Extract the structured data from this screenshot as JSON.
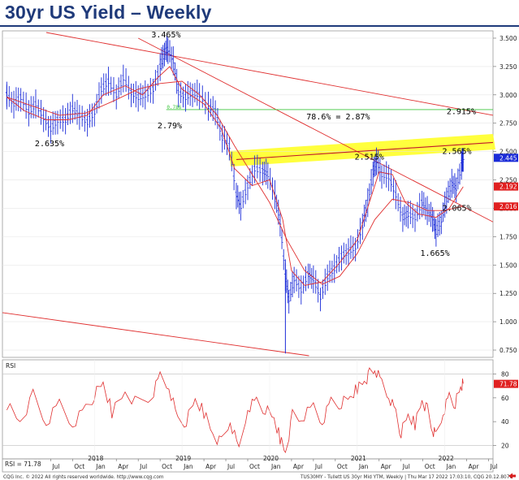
{
  "page": {
    "title": "30yr US Yield – Weekly"
  },
  "chart_data": {
    "type": "line",
    "price_panel": {
      "ylim": [
        0.7,
        3.55
      ],
      "yticks": [
        "3.500",
        "3.250",
        "3.000",
        "2.750",
        "2.500",
        "2.250",
        "2.000",
        "1.750",
        "1.500",
        "1.250",
        "1.000",
        "0.750"
      ],
      "y_badges": [
        {
          "value": "2.445",
          "color": "#1a2bd8"
        },
        {
          "value": "2.192",
          "color": "#e02020"
        },
        {
          "value": "2.016",
          "color": "#e02020"
        }
      ],
      "annotations": [
        {
          "text": "3.465%",
          "x": 2018.78,
          "y": 3.465
        },
        {
          "text": "2.635%",
          "x": 2017.45,
          "y": 2.635
        },
        {
          "text": "2.79%",
          "x": 2018.85,
          "y": 2.79
        },
        {
          "text": "78.6% = 2.87%",
          "x": 2020.55,
          "y": 2.87
        },
        {
          "text": "2.915%",
          "x": 2022.15,
          "y": 2.915
        },
        {
          "text": "2.515%",
          "x": 2021.1,
          "y": 2.515
        },
        {
          "text": "2.565%",
          "x": 2022.1,
          "y": 2.565
        },
        {
          "text": "2.065%",
          "x": 2022.1,
          "y": 2.065
        },
        {
          "text": "1.665%",
          "x": 2021.85,
          "y": 1.665
        },
        {
          "text": "0.786",
          "x": 2018.9,
          "y": 2.87
        }
      ],
      "fib_level": {
        "label": "78.6% = 2.87%",
        "value": 2.87
      },
      "series": [
        {
          "name": "",
          "style": "ohlc-bars",
          "points": [
            [
              2017.0,
              3.0
            ],
            [
              2017.08,
              2.92
            ],
            [
              2017.16,
              2.98
            ],
            [
              2017.25,
              2.85
            ],
            [
              2017.33,
              2.92
            ],
            [
              2017.42,
              2.8
            ],
            [
              2017.5,
              2.7
            ],
            [
              2017.58,
              2.78
            ],
            [
              2017.67,
              2.78
            ],
            [
              2017.75,
              2.88
            ],
            [
              2017.83,
              2.82
            ],
            [
              2017.92,
              2.76
            ],
            [
              2018.0,
              2.85
            ],
            [
              2018.08,
              3.05
            ],
            [
              2018.16,
              3.12
            ],
            [
              2018.25,
              3.0
            ],
            [
              2018.33,
              3.15
            ],
            [
              2018.42,
              3.02
            ],
            [
              2018.5,
              2.98
            ],
            [
              2018.58,
              3.0
            ],
            [
              2018.67,
              3.05
            ],
            [
              2018.75,
              3.25
            ],
            [
              2018.8,
              3.38
            ],
            [
              2018.84,
              3.4
            ],
            [
              2018.9,
              3.3
            ],
            [
              2018.96,
              3.02
            ],
            [
              2019.04,
              2.98
            ],
            [
              2019.12,
              3.02
            ],
            [
              2019.2,
              3.0
            ],
            [
              2019.3,
              2.9
            ],
            [
              2019.38,
              2.86
            ],
            [
              2019.46,
              2.62
            ],
            [
              2019.54,
              2.55
            ],
            [
              2019.62,
              2.12
            ],
            [
              2019.67,
              2.02
            ],
            [
              2019.75,
              2.2
            ],
            [
              2019.83,
              2.35
            ],
            [
              2019.92,
              2.33
            ],
            [
              2019.98,
              2.3
            ],
            [
              2020.06,
              2.12
            ],
            [
              2020.12,
              1.88
            ],
            [
              2020.18,
              1.4
            ],
            [
              2020.22,
              1.2
            ],
            [
              2020.28,
              1.38
            ],
            [
              2020.36,
              1.28
            ],
            [
              2020.44,
              1.42
            ],
            [
              2020.5,
              1.38
            ],
            [
              2020.58,
              1.22
            ],
            [
              2020.66,
              1.4
            ],
            [
              2020.74,
              1.47
            ],
            [
              2020.82,
              1.58
            ],
            [
              2020.9,
              1.62
            ],
            [
              2020.98,
              1.66
            ],
            [
              2021.06,
              1.85
            ],
            [
              2021.12,
              2.05
            ],
            [
              2021.18,
              2.32
            ],
            [
              2021.22,
              2.42
            ],
            [
              2021.28,
              2.3
            ],
            [
              2021.36,
              2.28
            ],
            [
              2021.44,
              2.12
            ],
            [
              2021.52,
              1.92
            ],
            [
              2021.58,
              1.95
            ],
            [
              2021.66,
              1.92
            ],
            [
              2021.74,
              2.05
            ],
            [
              2021.8,
              1.98
            ],
            [
              2021.86,
              1.92
            ],
            [
              2021.9,
              1.79
            ],
            [
              2021.96,
              1.9
            ],
            [
              2022.02,
              2.08
            ],
            [
              2022.08,
              2.22
            ],
            [
              2022.13,
              2.18
            ],
            [
              2022.19,
              2.38
            ],
            [
              2022.21,
              2.45
            ]
          ]
        },
        {
          "name": "",
          "style": "moving-average-short",
          "points": [
            [
              2017.0,
              2.98
            ],
            [
              2017.2,
              2.86
            ],
            [
              2017.45,
              2.78
            ],
            [
              2017.7,
              2.78
            ],
            [
              2017.92,
              2.82
            ],
            [
              2018.1,
              3.0
            ],
            [
              2018.35,
              3.08
            ],
            [
              2018.55,
              3.0
            ],
            [
              2018.72,
              3.15
            ],
            [
              2018.86,
              3.25
            ],
            [
              2019.0,
              3.05
            ],
            [
              2019.25,
              2.92
            ],
            [
              2019.45,
              2.7
            ],
            [
              2019.6,
              2.35
            ],
            [
              2019.8,
              2.2
            ],
            [
              2020.0,
              2.25
            ],
            [
              2020.15,
              1.9
            ],
            [
              2020.25,
              1.45
            ],
            [
              2020.4,
              1.32
            ],
            [
              2020.6,
              1.35
            ],
            [
              2020.8,
              1.52
            ],
            [
              2021.0,
              1.72
            ],
            [
              2021.15,
              2.08
            ],
            [
              2021.25,
              2.32
            ],
            [
              2021.4,
              2.3
            ],
            [
              2021.55,
              2.05
            ],
            [
              2021.7,
              1.95
            ],
            [
              2021.9,
              1.92
            ],
            [
              2022.05,
              2.0
            ],
            [
              2022.21,
              2.19
            ]
          ]
        },
        {
          "name": "",
          "style": "moving-average-long",
          "points": [
            [
              2017.0,
              2.98
            ],
            [
              2017.3,
              2.9
            ],
            [
              2017.6,
              2.82
            ],
            [
              2017.9,
              2.84
            ],
            [
              2018.2,
              2.94
            ],
            [
              2018.5,
              3.05
            ],
            [
              2018.75,
              3.1
            ],
            [
              2019.0,
              3.12
            ],
            [
              2019.2,
              3.0
            ],
            [
              2019.4,
              2.82
            ],
            [
              2019.6,
              2.55
            ],
            [
              2019.8,
              2.3
            ],
            [
              2020.0,
              2.05
            ],
            [
              2020.2,
              1.72
            ],
            [
              2020.4,
              1.45
            ],
            [
              2020.6,
              1.33
            ],
            [
              2020.8,
              1.4
            ],
            [
              2021.0,
              1.6
            ],
            [
              2021.2,
              1.9
            ],
            [
              2021.4,
              2.08
            ],
            [
              2021.6,
              2.05
            ],
            [
              2021.8,
              1.98
            ],
            [
              2022.0,
              1.98
            ],
            [
              2022.21,
              2.02
            ]
          ]
        }
      ]
    },
    "rsi_panel": {
      "label": "RSI",
      "ylim": [
        10,
        90
      ],
      "yticks": [
        "80",
        "60",
        "40",
        "20"
      ],
      "levels": [
        20,
        80
      ],
      "readout": "RSI = 71.78",
      "badge": "71.78",
      "points": [
        [
          2017.0,
          55
        ],
        [
          2017.15,
          40
        ],
        [
          2017.3,
          62
        ],
        [
          2017.45,
          38
        ],
        [
          2017.6,
          55
        ],
        [
          2017.75,
          38
        ],
        [
          2017.9,
          52
        ],
        [
          2018.0,
          62
        ],
        [
          2018.1,
          72
        ],
        [
          2018.2,
          48
        ],
        [
          2018.35,
          65
        ],
        [
          2018.5,
          55
        ],
        [
          2018.65,
          60
        ],
        [
          2018.75,
          78
        ],
        [
          2018.85,
          70
        ],
        [
          2018.95,
          42
        ],
        [
          2019.05,
          40
        ],
        [
          2019.15,
          58
        ],
        [
          2019.25,
          48
        ],
        [
          2019.35,
          30
        ],
        [
          2019.45,
          22
        ],
        [
          2019.55,
          40
        ],
        [
          2019.65,
          15
        ],
        [
          2019.75,
          52
        ],
        [
          2019.85,
          58
        ],
        [
          2019.95,
          50
        ],
        [
          2020.05,
          42
        ],
        [
          2020.12,
          26
        ],
        [
          2020.18,
          14
        ],
        [
          2020.26,
          45
        ],
        [
          2020.36,
          42
        ],
        [
          2020.5,
          52
        ],
        [
          2020.6,
          40
        ],
        [
          2020.7,
          58
        ],
        [
          2020.82,
          55
        ],
        [
          2020.92,
          60
        ],
        [
          2021.0,
          68
        ],
        [
          2021.08,
          74
        ],
        [
          2021.14,
          80
        ],
        [
          2021.2,
          84
        ],
        [
          2021.28,
          72
        ],
        [
          2021.36,
          62
        ],
        [
          2021.44,
          48
        ],
        [
          2021.5,
          30
        ],
        [
          2021.58,
          45
        ],
        [
          2021.66,
          38
        ],
        [
          2021.74,
          58
        ],
        [
          2021.8,
          50
        ],
        [
          2021.86,
          32
        ],
        [
          2021.9,
          28
        ],
        [
          2021.98,
          48
        ],
        [
          2022.05,
          62
        ],
        [
          2022.12,
          55
        ],
        [
          2022.18,
          68
        ],
        [
          2022.21,
          72
        ]
      ]
    },
    "x_axis": {
      "months": [
        "Jul",
        "Oct",
        "Jan",
        "Apr",
        "Jul",
        "Oct",
        "Jan",
        "Apr",
        "Jul",
        "Oct",
        "Jan",
        "Apr",
        "Jul",
        "Oct",
        "Jan",
        "Apr",
        "Jul",
        "Oct",
        "Jan",
        "Apr",
        "Jul"
      ],
      "years": [
        "2018",
        "2019",
        "2020",
        "2021",
        "2022"
      ]
    },
    "footer": {
      "left": "CQG Inc. © 2022 All rights reserved worldwide. http://www.cqg.com",
      "right": "TUS30MY - Tullett US 30yr Mid YTM, Weekly | Thu Mar 17 2022 17:03:10, CQG 20.12.8076"
    }
  }
}
